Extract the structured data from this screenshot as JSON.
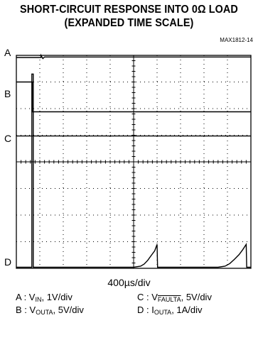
{
  "header": {
    "title_line1": "SHORT-CIRCUIT RESPONSE INTO 0Ω LOAD",
    "title_line2": "(EXPANDED TIME SCALE)",
    "part_number": "MAX1812-14"
  },
  "channels": {
    "a": "A",
    "b": "B",
    "c": "C",
    "d": "D"
  },
  "time_scale": "400µs/div",
  "legend": {
    "a": {
      "prefix": "A : V",
      "sub": "IN",
      "suffix": ", 1V/div"
    },
    "b": {
      "prefix": "B : V",
      "sub": "OUTA",
      "suffix": ", 5V/div"
    },
    "c": {
      "prefix": "C : V",
      "sub": "FAULTA",
      "suffix": ", 5V/div"
    },
    "d": {
      "prefix": "D : I",
      "sub": "OUTA",
      "suffix": ", 1A/div"
    }
  },
  "chart_data": {
    "type": "line",
    "title": "SHORT-CIRCUIT RESPONSE INTO 0Ω LOAD (EXPANDED TIME SCALE)",
    "xlabel": "400µs/div",
    "grid": true,
    "divisions": {
      "x": 10,
      "y": 8
    },
    "xlim": [
      0,
      10
    ],
    "ylim": [
      0,
      8
    ],
    "series": [
      {
        "name": "A",
        "x": [
          0,
          1.05,
          1.05,
          1.13,
          1.2,
          10
        ],
        "y": [
          7.92,
          7.92,
          8.0,
          7.88,
          7.94,
          7.94
        ]
      },
      {
        "name": "B",
        "x": [
          0,
          0.68,
          0.68,
          10
        ],
        "y": [
          7.0,
          7.0,
          5.88,
          5.88
        ]
      },
      {
        "name": "C",
        "x": [
          0,
          10
        ],
        "y": [
          4.97,
          4.97
        ]
      },
      {
        "name": "D",
        "x": [
          0,
          0.66,
          0.66,
          0.72,
          0.72,
          5.0,
          5.3,
          5.45,
          5.6,
          5.75,
          5.9,
          6.0,
          6.02,
          6.1,
          8.6,
          8.9,
          9.1,
          9.3,
          9.5,
          9.65,
          9.8,
          9.82,
          10
        ],
        "y": [
          0.04,
          0.04,
          7.3,
          7.3,
          0.04,
          0.04,
          0.08,
          0.16,
          0.3,
          0.48,
          0.66,
          0.9,
          0.04,
          0.04,
          0.04,
          0.08,
          0.18,
          0.34,
          0.52,
          0.7,
          0.9,
          0.04,
          0.04
        ]
      }
    ]
  }
}
